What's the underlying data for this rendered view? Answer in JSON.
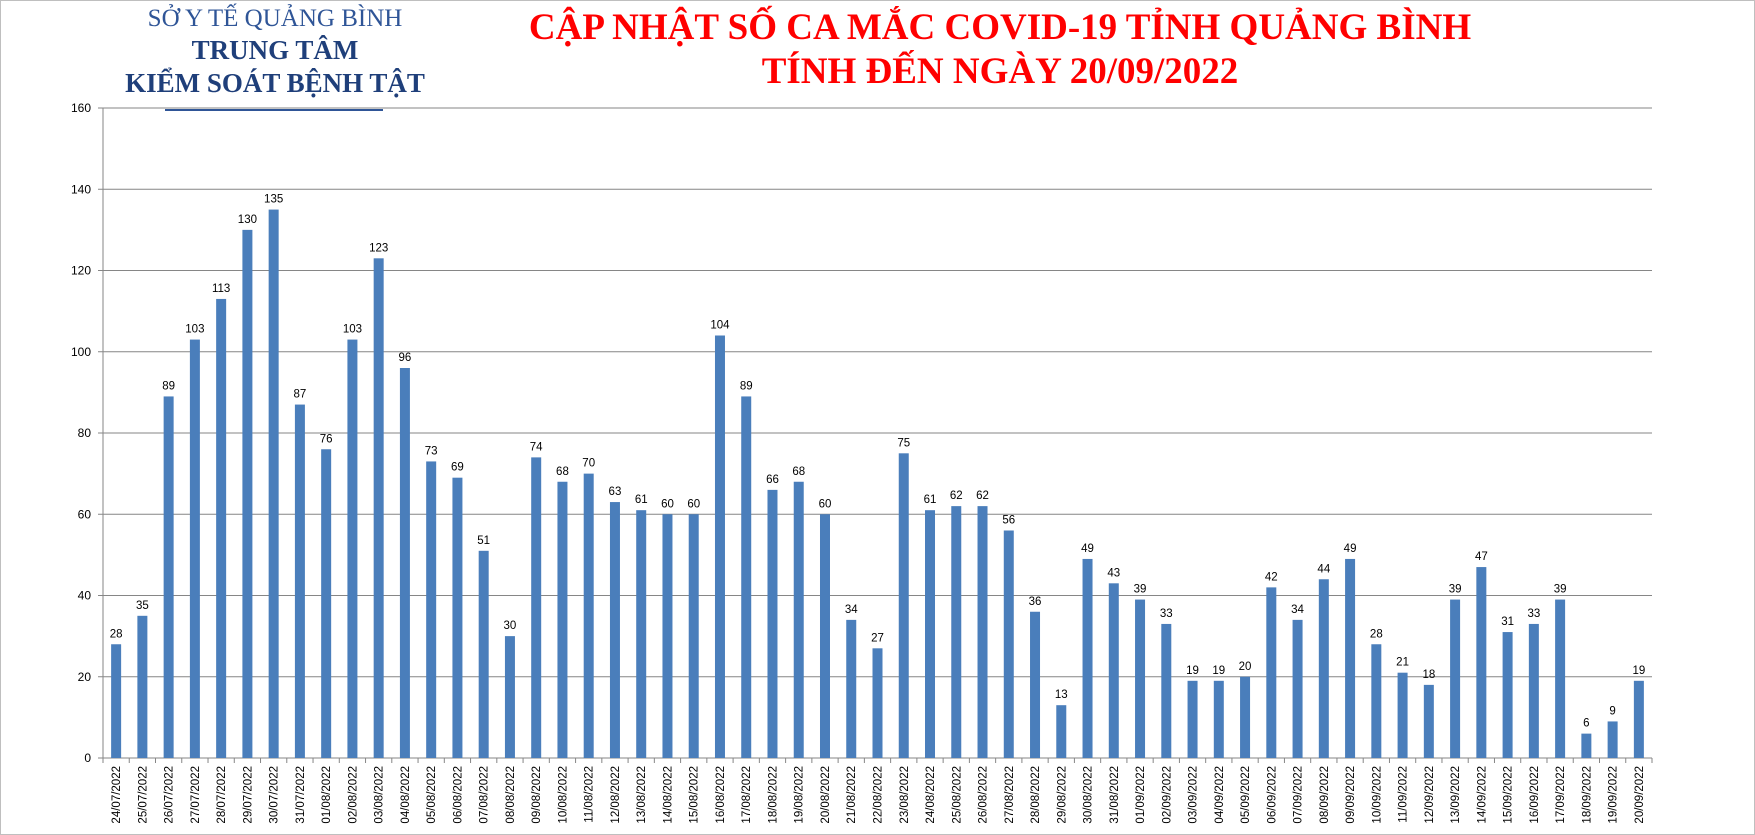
{
  "header": {
    "org_line1": "SỞ Y TẾ QUẢNG BÌNH",
    "org_line2": "TRUNG TÂM",
    "org_line3": "KIỂM SOÁT BỆNH TẬT",
    "title_line1": "CẬP NHẬT SỐ CA MẮC COVID-19 TỈNH QUẢNG BÌNH",
    "title_line2": "TÍNH ĐẾN NGÀY 20/09/2022"
  },
  "colors": {
    "bar": "#4a7ebb",
    "title": "#ff0000",
    "org": "#2f5597",
    "grid": "#868686"
  },
  "chart_data": {
    "type": "bar",
    "title": "CẬP NHẬT SỐ CA MẮC COVID-19 TỈNH QUẢNG BÌNH TÍNH ĐẾN NGÀY 20/09/2022",
    "xlabel": "",
    "ylabel": "",
    "ylim": [
      0,
      160
    ],
    "yticks": [
      0,
      20,
      40,
      60,
      80,
      100,
      120,
      140,
      160
    ],
    "grid": true,
    "legend": "none",
    "categories": [
      "24/07/2022",
      "25/07/2022",
      "26/07/2022",
      "27/07/2022",
      "28/07/2022",
      "29/07/2022",
      "30/07/2022",
      "31/07/2022",
      "01/08/2022",
      "02/08/2022",
      "03/08/2022",
      "04/08/2022",
      "05/08/2022",
      "06/08/2022",
      "07/08/2022",
      "08/08/2022",
      "09/08/2022",
      "10/08/2022",
      "11/08/2022",
      "12/08/2022",
      "13/08/2022",
      "14/08/2022",
      "15/08/2022",
      "16/08/2022",
      "17/08/2022",
      "18/08/2022",
      "19/08/2022",
      "20/08/2022",
      "21/08/2022",
      "22/08/2022",
      "23/08/2022",
      "24/08/2022",
      "25/08/2022",
      "26/08/2022",
      "27/08/2022",
      "28/08/2022",
      "29/08/2022",
      "30/08/2022",
      "31/08/2022",
      "01/09/2022",
      "02/09/2022",
      "03/09/2022",
      "04/09/2022",
      "05/09/2022",
      "06/09/2022",
      "07/09/2022",
      "08/09/2022",
      "09/09/2022",
      "10/09/2022",
      "11/09/2022",
      "12/09/2022",
      "13/09/2022",
      "14/09/2022",
      "15/09/2022",
      "16/09/2022",
      "17/09/2022",
      "18/09/2022",
      "19/09/2022",
      "20/09/2022"
    ],
    "values": [
      28,
      35,
      89,
      103,
      113,
      130,
      135,
      87,
      76,
      103,
      123,
      96,
      73,
      69,
      51,
      30,
      74,
      68,
      70,
      63,
      61,
      60,
      60,
      104,
      89,
      66,
      68,
      60,
      34,
      27,
      75,
      61,
      62,
      62,
      56,
      36,
      13,
      49,
      43,
      39,
      33,
      19,
      19,
      20,
      42,
      34,
      44,
      49,
      28,
      21,
      18,
      39,
      47,
      31,
      33,
      39,
      6,
      9,
      19
    ]
  }
}
